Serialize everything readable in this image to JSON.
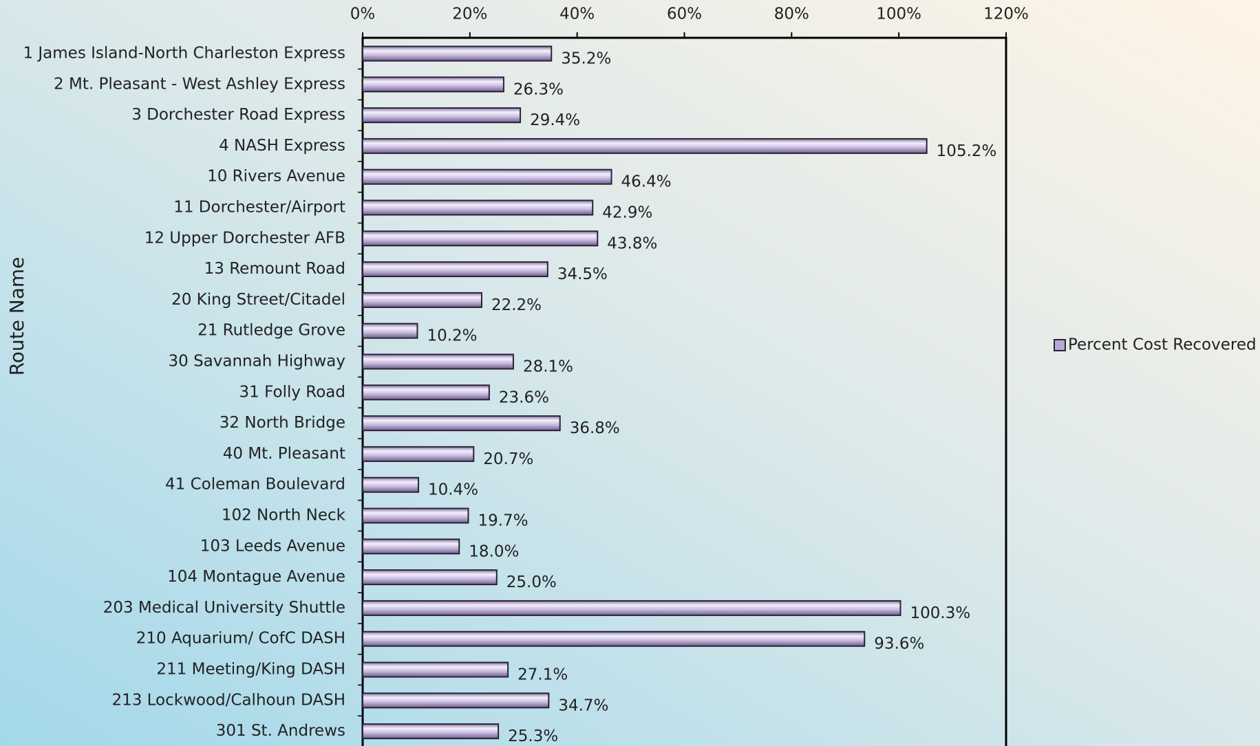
{
  "chart_data": {
    "type": "bar",
    "orientation": "horizontal",
    "y_axis_label": "Route Name",
    "categories": [
      "1 James Island-North Charleston Express",
      "2 Mt. Pleasant - West Ashley Express",
      "3 Dorchester Road Express",
      "4 NASH Express",
      "10 Rivers Avenue",
      "11 Dorchester/Airport",
      "12 Upper Dorchester AFB",
      "13 Remount Road",
      "20 King Street/Citadel",
      "21 Rutledge Grove",
      "30 Savannah Highway",
      "31 Folly Road",
      "32 North Bridge",
      "40 Mt. Pleasant",
      "41 Coleman Boulevard",
      "102 North Neck",
      "103 Leeds Avenue",
      "104 Montague Avenue",
      "203 Medical University Shuttle",
      "210 Aquarium/ CofC DASH",
      "211 Meeting/King DASH",
      "213 Lockwood/Calhoun DASH",
      "301 St. Andrews"
    ],
    "series": [
      {
        "name": "Percent Cost Recovered",
        "color": "#b9a9d4",
        "values": [
          35.2,
          26.3,
          29.4,
          105.2,
          46.4,
          42.9,
          43.8,
          34.5,
          22.2,
          10.2,
          28.1,
          23.6,
          36.8,
          20.7,
          10.4,
          19.7,
          18.0,
          25.0,
          100.3,
          93.6,
          27.1,
          34.7,
          25.3
        ],
        "value_labels": [
          "35.2%",
          "26.3%",
          "29.4%",
          "105.2%",
          "46.4%",
          "42.9%",
          "43.8%",
          "34.5%",
          "22.2%",
          "10.2%",
          "28.1%",
          "23.6%",
          "36.8%",
          "20.7%",
          "10.4%",
          "19.7%",
          "18.0%",
          "25.0%",
          "100.3%",
          "93.6%",
          "27.1%",
          "34.7%",
          "25.3%"
        ]
      }
    ],
    "xlim": [
      0,
      120
    ],
    "xticks": [
      {
        "value": 0,
        "label": "0%"
      },
      {
        "value": 20,
        "label": "20%"
      },
      {
        "value": 40,
        "label": "40%"
      },
      {
        "value": 60,
        "label": "60%"
      },
      {
        "value": 80,
        "label": "80%"
      },
      {
        "value": 100,
        "label": "100%"
      },
      {
        "value": 120,
        "label": "120%"
      }
    ],
    "legend": "right"
  }
}
